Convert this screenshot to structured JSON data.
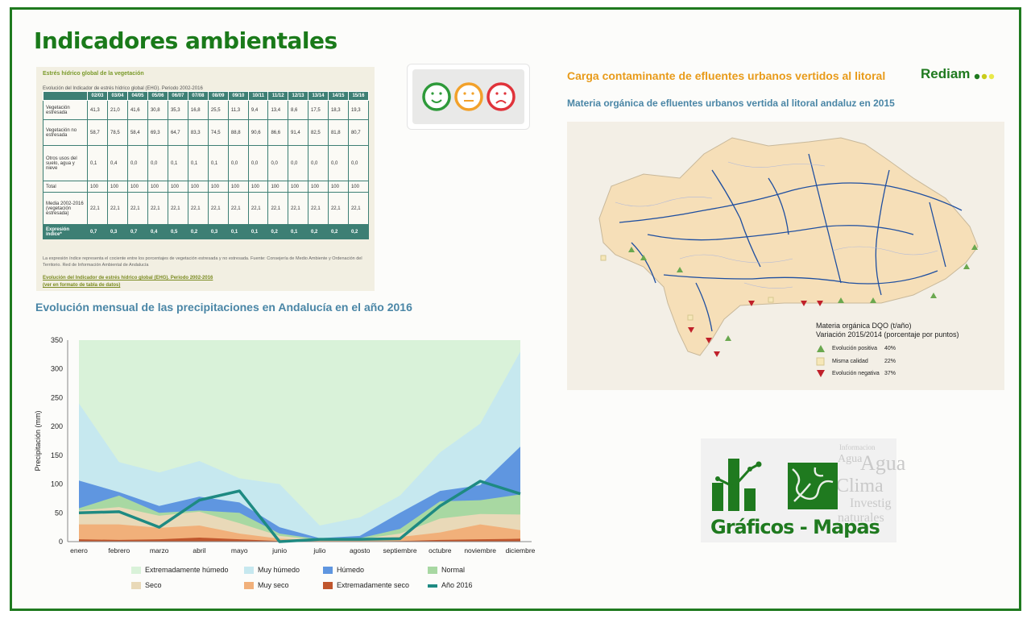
{
  "page": {
    "title": "Indicadores ambientales"
  },
  "ehg_table": {
    "title": "Estrés hídrico global de la vegetación",
    "subtitle": "Evolución del Indicador de estrés hídrico global (EHG). Periodo 2002-2016",
    "headers": [
      "",
      "02/03",
      "03/04",
      "04/05",
      "05/06",
      "06/07",
      "07/08",
      "08/09",
      "09/10",
      "10/11",
      "11/12",
      "12/13",
      "13/14",
      "14/15",
      "15/16"
    ],
    "rows": [
      [
        "Vegetación estresada",
        "41,3",
        "21,0",
        "41,6",
        "30,8",
        "35,3",
        "16,8",
        "25,5",
        "11,3",
        "9,4",
        "13,4",
        "8,6",
        "17,5",
        "18,3",
        "19,3"
      ],
      [
        "Vegetación no estresada",
        "58,7",
        "78,5",
        "58,4",
        "69,3",
        "64,7",
        "83,3",
        "74,5",
        "88,8",
        "90,6",
        "86,6",
        "91,4",
        "82,5",
        "81,8",
        "80,7"
      ],
      [
        "Otros usos del suelo, agua y nieve",
        "0,1",
        "0,4",
        "0,0",
        "0,0",
        "0,1",
        "0,1",
        "0,1",
        "0,0",
        "0,0",
        "0,0",
        "0,0",
        "0,0",
        "0,0",
        "0,0"
      ],
      [
        "Total",
        "100",
        "100",
        "100",
        "100",
        "100",
        "100",
        "100",
        "100",
        "100",
        "100",
        "100",
        "100",
        "100",
        "100"
      ],
      [
        "Media 2002-2016 (vegetación estresada)",
        "22,1",
        "22,1",
        "22,1",
        "22,1",
        "22,1",
        "22,1",
        "22,1",
        "22,1",
        "22,1",
        "22,1",
        "22,1",
        "22,1",
        "22,1",
        "22,1"
      ],
      [
        "Expresión índice*",
        "0,7",
        "0,3",
        "0,7",
        "0,4",
        "0,5",
        "0,2",
        "0,3",
        "0,1",
        "0,1",
        "0,2",
        "0,1",
        "0,2",
        "0,2",
        "0,2"
      ]
    ],
    "note": "La expresión índice representa el cociente entre los porcentajes de vegetación estresada y no estresada. Fuente: Consejería de Medio Ambiente y Ordenación del Territorio. Red de Información Ambiental de Andalucía",
    "link1": "Evolución del Indicador de estrés hídrico global (EHG). Periodo 2002-2016",
    "link2": "(ver en formato de tabla de datos)"
  },
  "smileys": {
    "good": "#2e9a3a",
    "neutral": "#f2a12a",
    "bad": "#e0333a",
    "faces": [
      "smile-icon",
      "neutral-face-icon",
      "sad-face-icon"
    ]
  },
  "rain_chart": {
    "title": "Evolución mensual de las precipitaciones en Andalucía en el año 2016",
    "ylabel": "Precipitación (mm)",
    "yticks": [
      "350",
      "300",
      "250",
      "200",
      "150",
      "100",
      "50",
      "0"
    ]
  },
  "chart_data": {
    "type": "area",
    "title": "Evolución mensual de las precipitaciones en Andalucía en el año 2016",
    "xlabel": "",
    "ylabel": "Precipitación (mm)",
    "ylim": [
      0,
      350
    ],
    "categories": [
      "enero",
      "febrero",
      "marzo",
      "abril",
      "mayo",
      "junio",
      "julio",
      "agosto",
      "septiembre",
      "octubre",
      "noviembre",
      "diciembre"
    ],
    "bands": [
      {
        "name": "Extremadamente seco",
        "color": "#c0562d",
        "upper": [
          4,
          3,
          4,
          7,
          4,
          1,
          0,
          0,
          1,
          3,
          4,
          5
        ]
      },
      {
        "name": "Muy seco",
        "color": "#f1b07a",
        "upper": [
          30,
          30,
          24,
          28,
          14,
          5,
          2,
          3,
          8,
          16,
          30,
          20
        ]
      },
      {
        "name": "Seco",
        "color": "#e9d9b8",
        "upper": [
          54,
          60,
          45,
          52,
          32,
          10,
          3,
          4,
          14,
          40,
          48,
          47
        ]
      },
      {
        "name": "Normal",
        "color": "#a8d8a2",
        "upper": [
          58,
          80,
          50,
          54,
          50,
          14,
          4,
          6,
          22,
          70,
          72,
          82
        ]
      },
      {
        "name": "Húmedo",
        "color": "#5f96e0",
        "upper": [
          106,
          86,
          62,
          78,
          68,
          25,
          6,
          10,
          50,
          88,
          98,
          165
        ]
      },
      {
        "name": "Muy húmedo",
        "color": "#c6e8ef",
        "upper": [
          240,
          138,
          120,
          140,
          110,
          100,
          28,
          42,
          80,
          155,
          205,
          330
        ]
      },
      {
        "name": "Extremadamente húmedo",
        "color": "#d9f2d9",
        "upper": [
          350,
          350,
          350,
          350,
          350,
          350,
          350,
          350,
          350,
          350,
          350,
          350
        ]
      }
    ],
    "series": [
      {
        "name": "Año 2016",
        "color": "#1e8a82",
        "values": [
          50,
          52,
          25,
          72,
          88,
          0,
          4,
          4,
          5,
          62,
          105,
          83
        ]
      }
    ],
    "legend": [
      "Extremadamente húmedo",
      "Muy húmedo",
      "Húmedo",
      "Normal",
      "Seco",
      "Muy seco",
      "Extremadamente seco",
      "Año 2016"
    ]
  },
  "carga": {
    "title": "Carga contaminante de efluentes urbanos vertidos al litoral",
    "brand": "Rediam",
    "map_title": "Materia orgánica de efluentes urbanos vertida al litoral andaluz en 2015",
    "legend_title1": "Materia orgánica DQO (t/año)",
    "legend_title2": "Variación 2015/2014 (porcentaje por puntos)",
    "legend": [
      {
        "label": "Evolución positiva",
        "value": "40%",
        "color": "#6aa84f"
      },
      {
        "label": "Misma calidad",
        "value": "22%",
        "color": "#f6e7b8"
      },
      {
        "label": "Evolución negativa",
        "value": "37%",
        "color": "#c0202a"
      }
    ]
  },
  "graficos": {
    "label": "Gráficos - Mapas",
    "words": [
      "Informacion",
      "Agua",
      "Clima",
      "Investig",
      "naturales",
      "Agua"
    ]
  }
}
